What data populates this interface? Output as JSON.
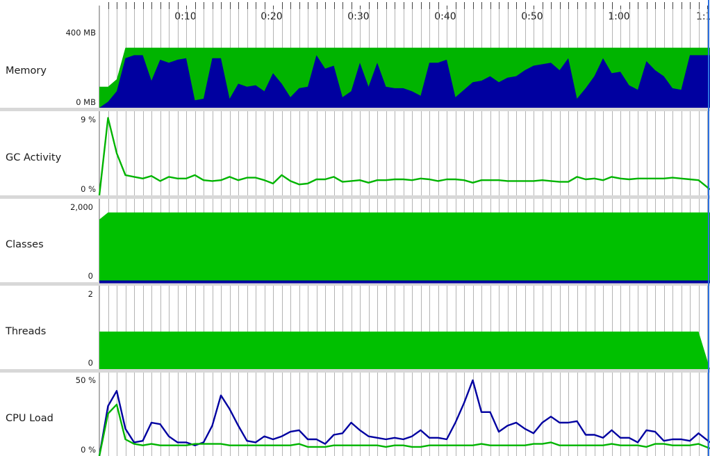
{
  "timeline": {
    "tick_labels": [
      "0:10",
      "0:20",
      "0:30",
      "0:40",
      "0:50",
      "1:00",
      "1:1"
    ],
    "tick_seconds": [
      10,
      20,
      30,
      40,
      50,
      60,
      70
    ],
    "start_seconds": 0,
    "visible_end_seconds": 70.4,
    "cursor_seconds": 70.2,
    "minor_grid_seconds": 1
  },
  "colors": {
    "green_fill": "#00c000",
    "mem_green": "#00b400",
    "blue": "#0000a0",
    "cursor": "#2a6fe0",
    "separator": "#d8d8d8",
    "grid": "#a0a0a0"
  },
  "chart_data": [
    {
      "type": "area",
      "name": "memory-panel",
      "panel_label": "Memory",
      "y_top_label": "400 MB",
      "y_bottom_label": "0 MB",
      "ylim": [
        0,
        500
      ],
      "series": [
        {
          "x": [
            0,
            1,
            2,
            3,
            70.4
          ],
          "values": [
            140,
            140,
            190,
            400,
            400
          ],
          "style": "fill"
        },
        {
          "x": [
            0,
            1,
            2,
            3,
            4,
            5,
            6,
            7,
            8,
            9,
            10,
            11,
            12,
            13,
            14,
            15,
            16,
            17,
            18,
            19,
            20,
            21,
            22,
            23,
            24,
            25,
            26,
            27,
            28,
            29,
            30,
            31,
            32,
            33,
            34,
            35,
            36,
            37,
            38,
            39,
            40,
            41,
            42,
            43,
            44,
            45,
            46,
            47,
            48,
            49,
            50,
            51,
            52,
            53,
            54,
            55,
            56,
            57,
            58,
            59,
            60,
            61,
            62,
            63,
            64,
            65,
            66,
            67,
            68,
            69,
            70.4
          ],
          "values": [
            0,
            40,
            110,
            330,
            350,
            350,
            180,
            320,
            300,
            320,
            330,
            50,
            60,
            330,
            330,
            60,
            160,
            140,
            150,
            110,
            230,
            160,
            70,
            130,
            140,
            350,
            260,
            280,
            70,
            110,
            300,
            140,
            300,
            140,
            130,
            130,
            110,
            80,
            300,
            300,
            320,
            70,
            120,
            170,
            180,
            210,
            170,
            200,
            210,
            250,
            280,
            290,
            300,
            250,
            330,
            60,
            130,
            210,
            330,
            230,
            240,
            150,
            120,
            310,
            250,
            210,
            130,
            120,
            350,
            350,
            350
          ],
          "style": "fill"
        }
      ]
    },
    {
      "type": "line",
      "name": "gc-activity-panel",
      "panel_label": "GC Activity",
      "y_top_label": "9 %",
      "y_bottom_label": "0 %",
      "ylim": [
        0,
        9
      ],
      "series": [
        {
          "x": [
            0,
            1,
            2,
            3,
            4,
            5,
            6,
            7,
            8,
            9,
            10,
            11,
            12,
            13,
            14,
            15,
            16,
            17,
            18,
            19,
            20,
            21,
            22,
            23,
            24,
            25,
            26,
            27,
            28,
            29,
            30,
            31,
            32,
            33,
            34,
            35,
            36,
            37,
            38,
            39,
            40,
            41,
            42,
            43,
            44,
            45,
            46,
            47,
            48,
            49,
            50,
            51,
            52,
            53,
            54,
            55,
            56,
            57,
            58,
            59,
            60,
            61,
            62,
            63,
            64,
            65,
            66,
            67,
            68,
            69,
            70.4
          ],
          "values": [
            0,
            9.2,
            5.0,
            2.4,
            2.2,
            2.0,
            2.3,
            1.7,
            2.2,
            2.0,
            2.0,
            2.4,
            1.8,
            1.7,
            1.8,
            2.2,
            1.8,
            2.1,
            2.1,
            1.8,
            1.4,
            2.4,
            1.7,
            1.3,
            1.4,
            1.9,
            1.9,
            2.2,
            1.6,
            1.7,
            1.8,
            1.5,
            1.8,
            1.8,
            1.9,
            1.9,
            1.8,
            2.0,
            1.9,
            1.7,
            1.9,
            1.9,
            1.8,
            1.5,
            1.8,
            1.8,
            1.8,
            1.7,
            1.7,
            1.7,
            1.7,
            1.8,
            1.7,
            1.6,
            1.6,
            2.2,
            1.9,
            2.0,
            1.8,
            2.2,
            2.0,
            1.9,
            2.0,
            2.0,
            2.0,
            2.0,
            2.1,
            2.0,
            1.9,
            1.8,
            0.7
          ],
          "style": "line"
        }
      ]
    },
    {
      "type": "area",
      "name": "classes-panel",
      "panel_label": "Classes",
      "y_top_label": "2,000",
      "y_bottom_label": "0",
      "ylim": [
        0,
        2000
      ],
      "series": [
        {
          "x": [
            0,
            1,
            70.4
          ],
          "values": [
            1670,
            1860,
            1860
          ],
          "style": "fill"
        },
        {
          "x": [
            0,
            70.4
          ],
          "values": [
            10,
            10
          ],
          "style": "line"
        }
      ]
    },
    {
      "type": "area",
      "name": "threads-panel",
      "panel_label": "Threads",
      "y_top_label": "2",
      "y_bottom_label": "0",
      "ylim": [
        0,
        2
      ],
      "series": [
        {
          "x": [
            0,
            69,
            70.4
          ],
          "values": [
            1,
            1,
            0
          ],
          "style": "fill"
        }
      ]
    },
    {
      "type": "line",
      "name": "cpu-load-panel",
      "panel_label": "CPU Load",
      "y_top_label": "50 %",
      "y_bottom_label": "0 %",
      "ylim": [
        0,
        50
      ],
      "series": [
        {
          "x": [
            0,
            1,
            2,
            3,
            4,
            5,
            6,
            7,
            8,
            9,
            10,
            11,
            12,
            13,
            14,
            15,
            16,
            17,
            18,
            19,
            20,
            21,
            22,
            23,
            24,
            25,
            26,
            27,
            28,
            29,
            30,
            31,
            32,
            33,
            34,
            35,
            36,
            37,
            38,
            39,
            40,
            41,
            42,
            43,
            44,
            45,
            46,
            47,
            48,
            49,
            50,
            51,
            52,
            53,
            54,
            55,
            56,
            57,
            58,
            59,
            60,
            61,
            62,
            63,
            64,
            65,
            66,
            67,
            68,
            69,
            70.4
          ],
          "values": [
            0,
            33,
            43,
            18,
            9,
            10,
            22,
            21,
            13,
            9,
            9,
            7,
            9,
            20,
            40,
            31,
            20,
            10,
            9,
            13,
            11,
            13,
            16,
            17,
            11,
            11,
            8,
            14,
            15,
            22,
            17,
            13,
            12,
            11,
            12,
            11,
            13,
            17,
            12,
            12,
            11,
            22,
            35,
            50,
            29,
            29,
            16,
            20,
            22,
            18,
            15,
            22,
            26,
            22,
            22,
            23,
            14,
            14,
            12,
            17,
            12,
            12,
            9,
            17,
            16,
            10,
            11,
            11,
            10,
            15,
            9
          ],
          "style": "line"
        },
        {
          "x": [
            0,
            1,
            2,
            3,
            4,
            5,
            6,
            7,
            8,
            9,
            10,
            11,
            12,
            13,
            14,
            15,
            16,
            17,
            18,
            19,
            20,
            21,
            22,
            23,
            24,
            25,
            26,
            27,
            28,
            29,
            30,
            31,
            32,
            33,
            34,
            35,
            36,
            37,
            38,
            39,
            40,
            41,
            42,
            43,
            44,
            45,
            46,
            47,
            48,
            49,
            50,
            51,
            52,
            53,
            54,
            55,
            56,
            57,
            58,
            59,
            60,
            61,
            62,
            63,
            64,
            65,
            66,
            67,
            68,
            69,
            70.4
          ],
          "values": [
            0,
            28,
            34,
            11,
            8,
            7,
            8,
            7,
            7,
            7,
            7,
            8,
            8,
            8,
            8,
            7,
            7,
            7,
            7,
            7,
            7,
            7,
            7,
            8,
            6,
            6,
            6,
            7,
            7,
            7,
            7,
            7,
            7,
            6,
            7,
            7,
            6,
            6,
            7,
            7,
            7,
            7,
            7,
            7,
            8,
            7,
            7,
            7,
            7,
            7,
            8,
            8,
            9,
            7,
            7,
            7,
            7,
            7,
            7,
            8,
            7,
            7,
            7,
            6,
            8,
            8,
            7,
            7,
            7,
            8,
            5
          ],
          "style": "line"
        }
      ]
    }
  ]
}
